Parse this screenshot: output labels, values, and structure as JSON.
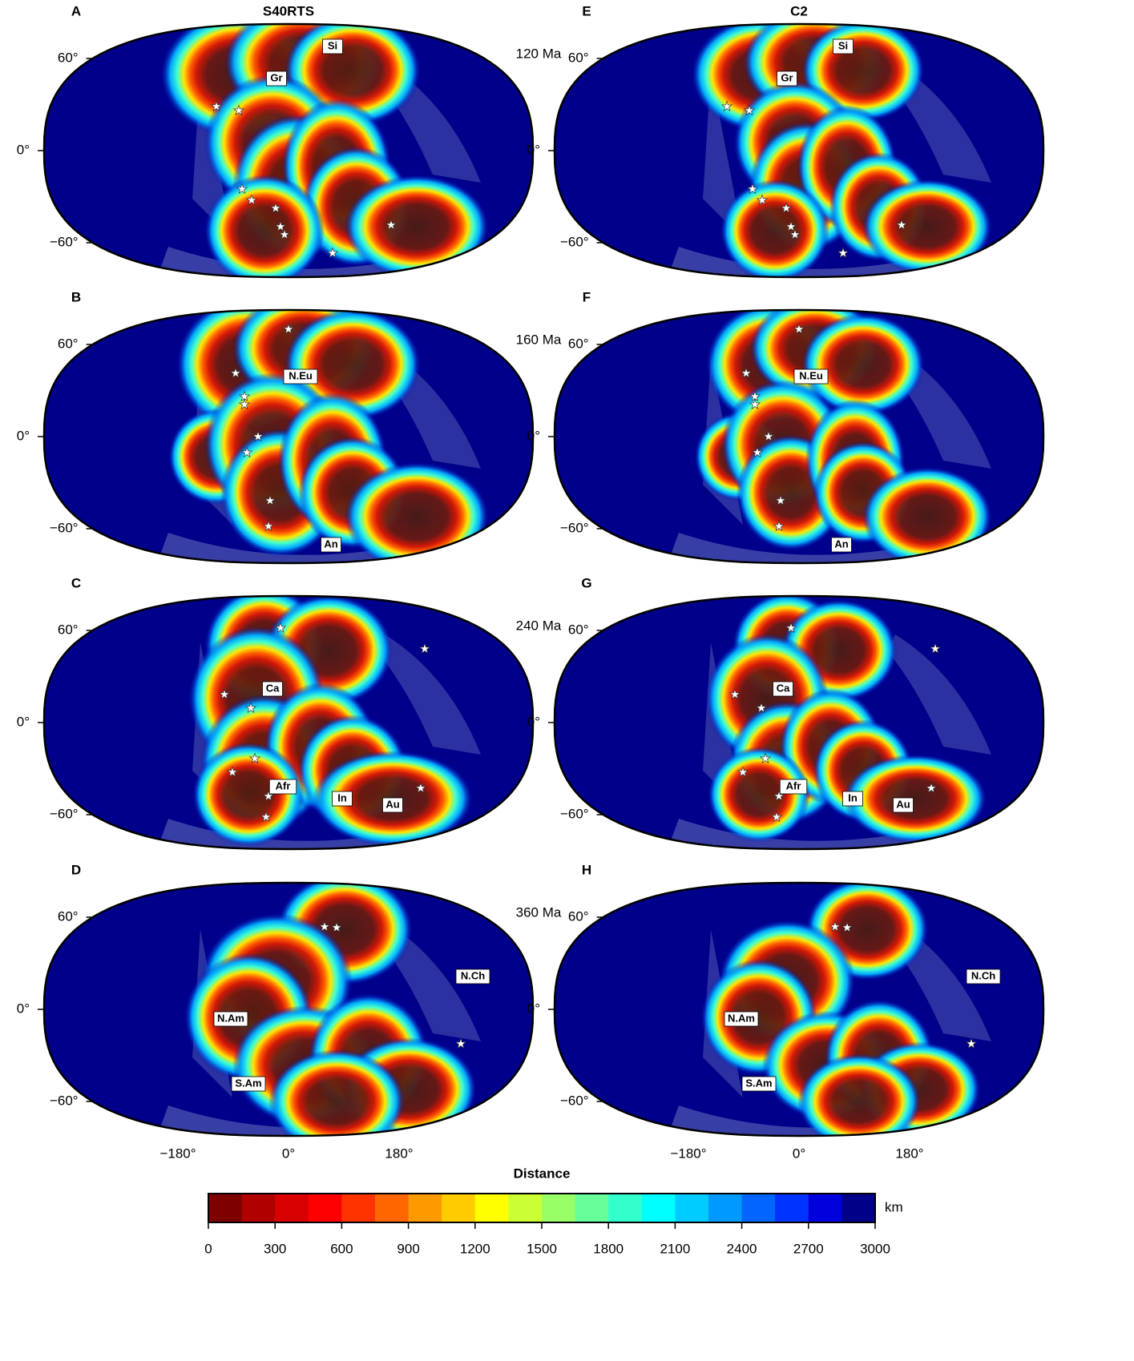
{
  "columns": [
    "S40RTS",
    "C2"
  ],
  "ages": [
    "120 Ma",
    "160 Ma",
    "240 Ma",
    "360 Ma"
  ],
  "panels": [
    {
      "letter": "A",
      "labels": [
        "Si",
        "Gr"
      ]
    },
    {
      "letter": "B",
      "labels": [
        "N.Eu",
        "An"
      ]
    },
    {
      "letter": "C",
      "labels": [
        "Ca",
        "Afr",
        "In",
        "Au"
      ]
    },
    {
      "letter": "D",
      "labels": [
        "N.Ch",
        "N.Am",
        "S.Am"
      ]
    },
    {
      "letter": "E",
      "labels": [
        "Si",
        "Gr"
      ]
    },
    {
      "letter": "F",
      "labels": [
        "N.Eu",
        "An"
      ]
    },
    {
      "letter": "G",
      "labels": [
        "Ca",
        "Afr",
        "In",
        "Au"
      ]
    },
    {
      "letter": "H",
      "labels": [
        "N.Ch",
        "N.Am",
        "S.Am"
      ]
    }
  ],
  "lat_ticks": [
    "60°",
    "0°",
    "−60°"
  ],
  "lon_ticks": [
    "−180°",
    "0°",
    "180°"
  ],
  "colorbar": {
    "title": "Distance",
    "unit": "km",
    "lim": [
      0,
      3000
    ],
    "ticks": [
      0,
      300,
      600,
      900,
      1200,
      1500,
      1800,
      2100,
      2400,
      2700,
      3000
    ],
    "colors": [
      "#7f0000",
      "#b00000",
      "#d80000",
      "#ff0000",
      "#ff3300",
      "#ff6600",
      "#ff9900",
      "#ffcc00",
      "#ffff00",
      "#ccff33",
      "#99ff66",
      "#66ff99",
      "#33ffcc",
      "#00ffff",
      "#00ccff",
      "#0099ff",
      "#0066ff",
      "#0033ff",
      "#0000dd",
      "#000088"
    ]
  }
}
